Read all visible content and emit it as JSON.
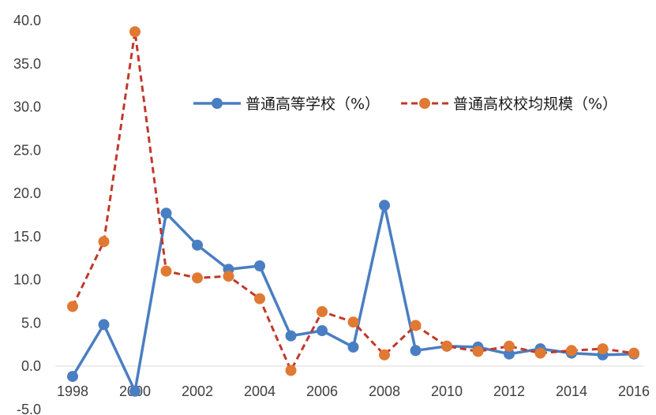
{
  "chart_data": {
    "type": "line",
    "title": "",
    "xlabel": "",
    "ylabel": "",
    "ylim": [
      -5,
      40
    ],
    "yticks": [
      "-5.0",
      "0.0",
      "5.0",
      "10.0",
      "15.0",
      "20.0",
      "25.0",
      "30.0",
      "35.0",
      "40.0"
    ],
    "x": [
      1998,
      1999,
      2000,
      2001,
      2002,
      2003,
      2004,
      2005,
      2006,
      2007,
      2008,
      2009,
      2010,
      2011,
      2012,
      2013,
      2014,
      2015,
      2016
    ],
    "xtick_labels": [
      "1998",
      "2000",
      "2002",
      "2004",
      "2006",
      "2008",
      "2010",
      "2012",
      "2014",
      "2016"
    ],
    "grid": false,
    "legend_position": "center-right",
    "series": [
      {
        "name": "普通高等学校（%）",
        "color": "#4A7EC2",
        "style": "solid",
        "values": [
          -1.2,
          4.8,
          -2.9,
          17.7,
          14.0,
          11.2,
          11.6,
          3.5,
          4.1,
          2.2,
          18.6,
          1.8,
          2.3,
          2.2,
          1.4,
          2.0,
          1.5,
          1.3,
          1.4
        ]
      },
      {
        "name": "普通高校校均规模（%）",
        "color": "#C0392B",
        "style": "dashed",
        "marker_color": "#E07A33",
        "values": [
          6.9,
          14.4,
          38.7,
          11.0,
          10.2,
          10.4,
          7.8,
          -0.5,
          6.3,
          5.1,
          1.3,
          4.7,
          2.3,
          1.7,
          2.3,
          1.5,
          1.8,
          2.0,
          1.5
        ]
      }
    ]
  }
}
